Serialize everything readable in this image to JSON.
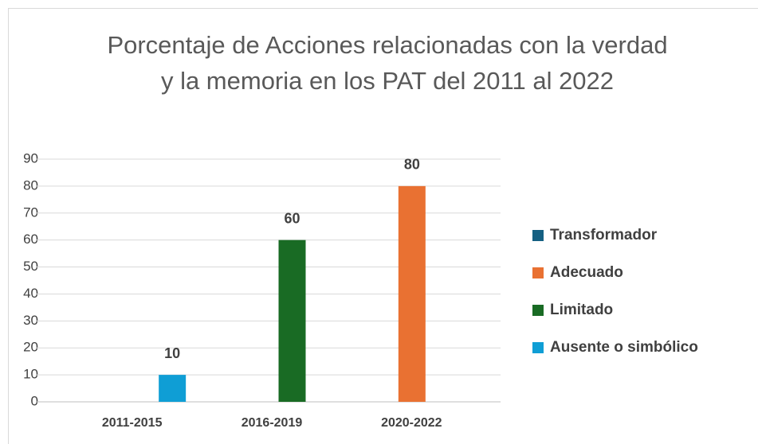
{
  "chart_data": {
    "type": "bar",
    "title": "Porcentaje de Acciones relacionadas con la verdad y la memoria en los  PAT del 2011 al 2022",
    "categories": [
      "2011-2015",
      "2016-2019",
      "2020-2022"
    ],
    "series": [
      {
        "name": "Transformador",
        "color": "#156082",
        "values": [
          null,
          null,
          null
        ]
      },
      {
        "name": "Adecuado",
        "color": "#e97132",
        "values": [
          null,
          null,
          80
        ]
      },
      {
        "name": "Limitado",
        "color": "#196b24",
        "values": [
          null,
          60,
          null
        ]
      },
      {
        "name": "Ausente o simbólico",
        "color": "#0f9ed5",
        "values": [
          10,
          null,
          null
        ]
      }
    ],
    "ylim": [
      0,
      90
    ],
    "yticks": [
      0,
      10,
      20,
      30,
      40,
      50,
      60,
      70,
      80,
      90
    ],
    "grid": true,
    "legend": "right"
  }
}
